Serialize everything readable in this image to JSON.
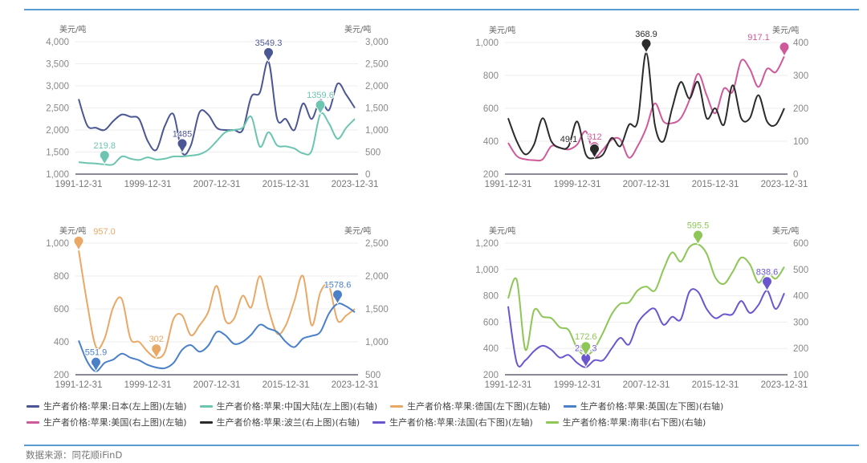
{
  "legend": [
    {
      "label": "生产者价格:苹果:日本(左上图)(左轴)",
      "color": "#4b5694"
    },
    {
      "label": "生产者价格:苹果:中国大陆(左上图)(右轴)",
      "color": "#6cc5b0"
    },
    {
      "label": "生产者价格:苹果:德国(左下图)(左轴)",
      "color": "#e9a866"
    },
    {
      "label": "生产者价格:苹果:英国(左下图)(右轴)",
      "color": "#4a80c8"
    },
    {
      "label": "生产者价格:苹果:美国(右上图)(左轴)",
      "color": "#cf5a9a"
    },
    {
      "label": "生产者价格:苹果:波兰(右上图)(右轴)",
      "color": "#2b2b2b"
    },
    {
      "label": "生产者价格:苹果:法国(右下图)(左轴)",
      "color": "#6b56d0"
    },
    {
      "label": "生产者价格:苹果:南非(右下图)(右轴)",
      "color": "#8ec657"
    }
  ],
  "source": "数据来源：同花顺iFinD",
  "chart_data": [
    {
      "type": "line",
      "position": "top-left",
      "grid": true,
      "x_ticks": [
        "1991-12-31",
        "1999-12-31",
        "2007-12-31",
        "2015-12-31",
        "2023-12-31"
      ],
      "x_range": [
        1991,
        2023
      ],
      "left_axis": {
        "unit": "美元/吨",
        "min": 1000,
        "max": 4000,
        "ticks": [
          "1,000",
          "1,500",
          "2,000",
          "2,500",
          "3,000",
          "3,500",
          "4,000"
        ]
      },
      "right_axis": {
        "unit": "美元/吨",
        "min": 0,
        "max": 3000,
        "ticks": [
          "0",
          "500",
          "1,000",
          "1,500",
          "2,000",
          "2,500",
          "3,000"
        ]
      },
      "series": [
        {
          "name": "生产者价格:苹果:日本(左上图)(左轴)",
          "axis": "left",
          "color": "#4b5694",
          "x": [
            1991,
            1992,
            1993,
            1994,
            1995,
            1996,
            1997,
            1998,
            1999,
            2000,
            2001,
            2002,
            2003,
            2004,
            2005,
            2006,
            2007,
            2008,
            2009,
            2010,
            2011,
            2012,
            2013,
            2014,
            2015,
            2016,
            2017,
            2018,
            2019,
            2020,
            2021,
            2022,
            2023
          ],
          "values": [
            2700,
            2100,
            2050,
            2000,
            2200,
            2350,
            2300,
            2250,
            1750,
            1550,
            2100,
            2350,
            1485,
            1650,
            2400,
            2350,
            2050,
            2000,
            2000,
            2000,
            2750,
            2850,
            3549.3,
            2250,
            2250,
            2000,
            2600,
            2250,
            2680,
            2450,
            3050,
            2800,
            2500
          ],
          "markers": [
            {
              "x": 2013,
              "value": 3549.3,
              "label": "3549.3"
            },
            {
              "x": 2003,
              "value": 1485,
              "label": "1485"
            }
          ]
        },
        {
          "name": "生产者价格:苹果:中国大陆(左上图)(右轴)",
          "axis": "right",
          "color": "#6cc5b0",
          "x": [
            1991,
            1992,
            1993,
            1994,
            1995,
            1996,
            1997,
            1998,
            1999,
            2000,
            2001,
            2002,
            2003,
            2004,
            2005,
            2006,
            2007,
            2008,
            2009,
            2010,
            2011,
            2012,
            2013,
            2014,
            2015,
            2016,
            2017,
            2018,
            2019,
            2020,
            2021,
            2022,
            2023
          ],
          "values": [
            270,
            250,
            240,
            219.8,
            220,
            400,
            350,
            320,
            380,
            330,
            350,
            400,
            400,
            420,
            450,
            550,
            750,
            950,
            1000,
            1050,
            1300,
            620,
            950,
            650,
            630,
            580,
            470,
            530,
            1359.6,
            1150,
            800,
            1050,
            1250
          ],
          "markers": [
            {
              "x": 1994,
              "value": 219.8,
              "label": "219.8"
            },
            {
              "x": 2019,
              "value": 1359.6,
              "label": "1359.6"
            }
          ]
        }
      ]
    },
    {
      "type": "line",
      "position": "top-right",
      "grid": true,
      "x_ticks": [
        "1991-12-31",
        "1999-12-31",
        "2007-12-31",
        "2015-12-31",
        "2023-12-31"
      ],
      "x_range": [
        1991,
        2023
      ],
      "left_axis": {
        "unit": "美元/吨",
        "min": 200,
        "max": 1000,
        "ticks": [
          "200",
          "400",
          "600",
          "800",
          "1,000"
        ]
      },
      "right_axis": {
        "unit": "美元/吨",
        "min": 0,
        "max": 400,
        "ticks": [
          "0",
          "100",
          "200",
          "300",
          "400"
        ]
      },
      "series": [
        {
          "name": "生产者价格:苹果:美国(右上图)(左轴)",
          "axis": "left",
          "color": "#cf5a9a",
          "x": [
            1991,
            1992,
            1993,
            1994,
            1995,
            1996,
            1997,
            1998,
            1999,
            2000,
            2001,
            2002,
            2003,
            2004,
            2005,
            2006,
            2007,
            2008,
            2009,
            2010,
            2011,
            2012,
            2013,
            2014,
            2015,
            2016,
            2017,
            2018,
            2019,
            2020,
            2021,
            2022,
            2023
          ],
          "values": [
            390,
            310,
            290,
            285,
            290,
            370,
            360,
            350,
            380,
            460,
            312,
            350,
            410,
            410,
            300,
            370,
            480,
            630,
            520,
            510,
            540,
            650,
            810,
            680,
            570,
            720,
            700,
            890,
            840,
            730,
            840,
            820,
            917.1
          ],
          "markers": [
            {
              "x": 2001,
              "value": 312,
              "label": "312"
            },
            {
              "x": 2023,
              "value": 917.1,
              "label": "917.1"
            }
          ]
        },
        {
          "name": "生产者价格:苹果:波兰(右上图)(右轴)",
          "axis": "right",
          "color": "#2b2b2b",
          "x": [
            1991,
            1992,
            1993,
            1994,
            1995,
            1996,
            1997,
            1998,
            1999,
            2000,
            2001,
            2002,
            2003,
            2004,
            2005,
            2006,
            2007,
            2008,
            2009,
            2010,
            2011,
            2012,
            2013,
            2014,
            2015,
            2016,
            2017,
            2018,
            2019,
            2020,
            2021,
            2022,
            2023
          ],
          "values": [
            170,
            100,
            60,
            90,
            170,
            100,
            80,
            85,
            160,
            60,
            49.1,
            60,
            110,
            85,
            150,
            160,
            368.9,
            150,
            100,
            200,
            280,
            230,
            280,
            170,
            200,
            150,
            270,
            170,
            170,
            240,
            160,
            150,
            200
          ],
          "markers": [
            {
              "x": 2007,
              "value": 368.9,
              "label": "368.9"
            },
            {
              "x": 2001,
              "value": 49.1,
              "label": "49.1"
            }
          ]
        }
      ]
    },
    {
      "type": "line",
      "position": "bottom-left",
      "grid": true,
      "x_ticks": [
        "1991-12-31",
        "1999-12-31",
        "2007-12-31",
        "2015-12-31",
        "2023-12-31"
      ],
      "x_range": [
        1991,
        2023
      ],
      "left_axis": {
        "unit": "美元/吨",
        "min": 200,
        "max": 1000,
        "ticks": [
          "200",
          "400",
          "600",
          "800",
          "1,000"
        ]
      },
      "right_axis": {
        "unit": "美元/吨",
        "min": 500,
        "max": 2500,
        "ticks": [
          "500",
          "1,000",
          "1,500",
          "2,000",
          "2,500"
        ]
      },
      "series": [
        {
          "name": "生产者价格:苹果:德国(左下图)(左轴)",
          "axis": "left",
          "color": "#e9a866",
          "x": [
            1991,
            1992,
            1993,
            1994,
            1995,
            1996,
            1997,
            1998,
            1999,
            2000,
            2001,
            2002,
            2003,
            2004,
            2005,
            2006,
            2007,
            2008,
            2009,
            2010,
            2011,
            2012,
            2013,
            2014,
            2015,
            2016,
            2017,
            2018,
            2019,
            2020,
            2021,
            2022,
            2023
          ],
          "values": [
            957.0,
            630,
            370,
            420,
            610,
            660,
            420,
            400,
            340,
            302,
            340,
            540,
            560,
            440,
            500,
            580,
            740,
            530,
            540,
            680,
            610,
            800,
            600,
            450,
            500,
            650,
            800,
            500,
            700,
            740,
            530,
            560,
            600
          ],
          "markers": [
            {
              "x": 1991,
              "value": 957.0,
              "label": "957.0"
            },
            {
              "x": 2000,
              "value": 302,
              "label": "302"
            }
          ]
        },
        {
          "name": "生产者价格:苹果:英国(左下图)(右轴)",
          "axis": "right",
          "color": "#4a80c8",
          "x": [
            1991,
            1992,
            1993,
            1994,
            1995,
            1996,
            1997,
            1998,
            1999,
            2000,
            2001,
            2002,
            2003,
            2004,
            2005,
            2006,
            2007,
            2008,
            2009,
            2010,
            2011,
            2012,
            2013,
            2014,
            2015,
            2016,
            2017,
            2018,
            2019,
            2020,
            2021,
            2022,
            2023
          ],
          "values": [
            1020,
            700,
            551.9,
            680,
            730,
            820,
            760,
            720,
            650,
            610,
            600,
            680,
            880,
            950,
            850,
            940,
            1150,
            1100,
            970,
            1000,
            1110,
            1260,
            1200,
            1150,
            1000,
            920,
            1050,
            1090,
            1150,
            1430,
            1578.6,
            1540,
            1450
          ],
          "markers": [
            {
              "x": 1993,
              "value": 551.9,
              "label": "551.9"
            },
            {
              "x": 2021,
              "value": 1578.6,
              "label": "1578.6"
            }
          ]
        }
      ]
    },
    {
      "type": "line",
      "position": "bottom-right",
      "grid": true,
      "x_ticks": [
        "1991-12-31",
        "1999-12-31",
        "2007-12-31",
        "2015-12-31",
        "2023-12-31"
      ],
      "x_range": [
        1991,
        2023
      ],
      "left_axis": {
        "unit": "美元/吨",
        "min": 200,
        "max": 1200,
        "ticks": [
          "200",
          "400",
          "600",
          "800",
          "1,000",
          "1,200"
        ]
      },
      "right_axis": {
        "unit": "美元/吨",
        "min": 100,
        "max": 600,
        "ticks": [
          "100",
          "200",
          "300",
          "400",
          "500",
          "600"
        ]
      },
      "series": [
        {
          "name": "生产者价格:苹果:法国(右下图)(左轴)",
          "axis": "left",
          "color": "#6b56d0",
          "x": [
            1991,
            1992,
            1993,
            1994,
            1995,
            1996,
            1997,
            1998,
            1999,
            2000,
            2001,
            2002,
            2003,
            2004,
            2005,
            2006,
            2007,
            2008,
            2009,
            2010,
            2011,
            2012,
            2013,
            2014,
            2015,
            2016,
            2017,
            2018,
            2019,
            2020,
            2021,
            2022,
            2023
          ],
          "values": [
            720,
            290,
            310,
            380,
            420,
            390,
            330,
            350,
            290,
            257.3,
            310,
            310,
            400,
            480,
            430,
            590,
            670,
            700,
            580,
            640,
            620,
            830,
            830,
            700,
            630,
            660,
            660,
            760,
            670,
            730,
            838.6,
            700,
            820
          ],
          "markers": [
            {
              "x": 2000,
              "value": 257.3,
              "label": "257.3"
            },
            {
              "x": 2021,
              "value": 838.6,
              "label": "838.6"
            }
          ]
        },
        {
          "name": "生产者价格:苹果:南非(右下图)(右轴)",
          "axis": "right",
          "color": "#8ec657",
          "x": [
            1991,
            1992,
            1993,
            1994,
            1995,
            1996,
            1997,
            1998,
            1999,
            2000,
            2001,
            2002,
            2003,
            2004,
            2005,
            2006,
            2007,
            2008,
            2009,
            2010,
            2011,
            2012,
            2013,
            2014,
            2015,
            2016,
            2017,
            2018,
            2019,
            2020,
            2021,
            2022,
            2023
          ],
          "values": [
            390,
            460,
            195,
            345,
            320,
            315,
            280,
            270,
            200,
            172.6,
            200,
            260,
            330,
            370,
            375,
            420,
            435,
            420,
            500,
            565,
            530,
            585,
            595.5,
            560,
            470,
            445,
            490,
            545,
            520,
            450,
            490,
            465,
            510
          ],
          "markers": [
            {
              "x": 2000,
              "value": 172.6,
              "label": "172.6"
            },
            {
              "x": 2013,
              "value": 595.5,
              "label": "595.5"
            }
          ]
        }
      ]
    }
  ]
}
